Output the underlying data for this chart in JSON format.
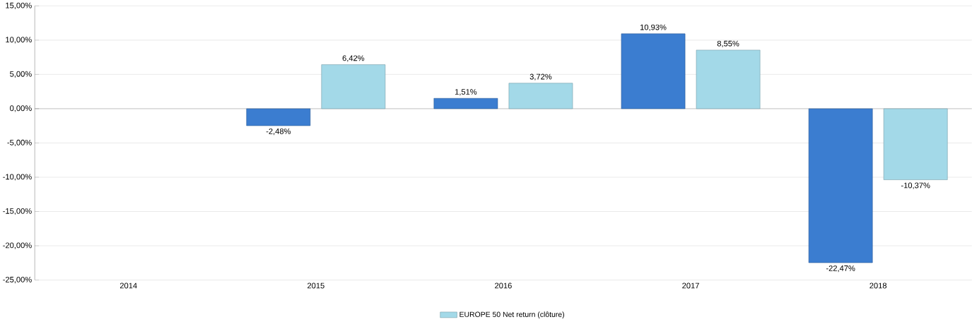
{
  "chart_data": {
    "type": "bar",
    "categories": [
      "2014",
      "2015",
      "2016",
      "2017",
      "2018"
    ],
    "series": [
      {
        "color": "#3b7dd0",
        "values": [
          null,
          -2.48,
          1.51,
          10.93,
          -22.47
        ],
        "value_labels": [
          null,
          "-2,48%",
          "1,51%",
          "10,93%",
          "-22,47%"
        ]
      },
      {
        "name": "EUROPE 50 Net return (clôture)",
        "color": "#a3d9e8",
        "values": [
          null,
          6.42,
          3.72,
          8.55,
          -10.37
        ],
        "value_labels": [
          null,
          "6,42%",
          "3,72%",
          "8,55%",
          "-10,37%"
        ]
      }
    ],
    "ylim": [
      -25,
      15
    ],
    "yticks": [
      {
        "value": -25,
        "label": "-25,00%"
      },
      {
        "value": -20,
        "label": "-20,00%"
      },
      {
        "value": -15,
        "label": "-15,00%"
      },
      {
        "value": -10,
        "label": "-10,00%"
      },
      {
        "value": -5,
        "label": "-5,00%"
      },
      {
        "value": 0,
        "label": "0,00%"
      },
      {
        "value": 5,
        "label": "5,00%"
      },
      {
        "value": 10,
        "label": "10,00%"
      },
      {
        "value": 15,
        "label": "15,00%"
      }
    ],
    "grid": "y",
    "legend": "bottom"
  }
}
